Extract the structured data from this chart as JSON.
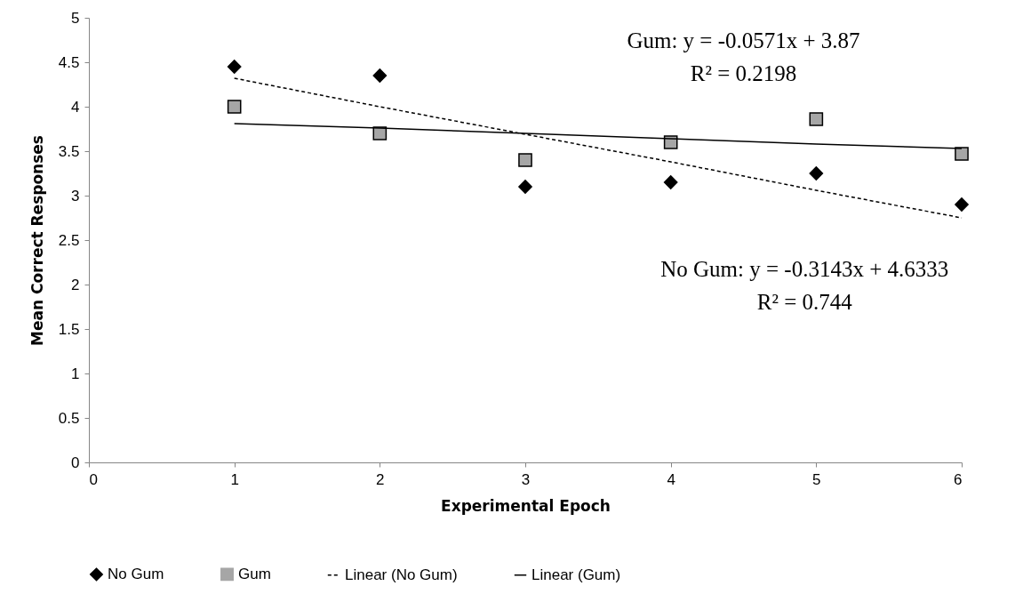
{
  "chart_data": {
    "type": "scatter",
    "xlabel": "Experimental Epoch",
    "ylabel": "Mean Correct Responses",
    "x": [
      1,
      2,
      3,
      4,
      5,
      6
    ],
    "xlim": [
      0,
      6
    ],
    "xticks": [
      0,
      1,
      2,
      3,
      4,
      5,
      6
    ],
    "ylim": [
      0,
      5
    ],
    "yticks": [
      0,
      0.5,
      1,
      1.5,
      2,
      2.5,
      3,
      3.5,
      4,
      4.5,
      5
    ],
    "series": [
      {
        "name": "No Gum",
        "marker": "diamond",
        "color": "#000000",
        "values": [
          4.45,
          4.35,
          3.1,
          3.15,
          3.25,
          2.9
        ]
      },
      {
        "name": "Gum",
        "marker": "square",
        "color": "#a6a6a6",
        "values": [
          4.0,
          3.7,
          3.4,
          3.6,
          3.86,
          3.47
        ]
      },
      {
        "name": "Linear (No Gum)",
        "type": "line",
        "line_style": "dashed",
        "color": "#000000",
        "values": [
          4.32,
          4.0,
          3.69,
          3.38,
          3.06,
          2.75
        ]
      },
      {
        "name": "Linear (Gum)",
        "type": "line",
        "line_style": "solid",
        "color": "#000000",
        "values": [
          3.81,
          3.76,
          3.7,
          3.64,
          3.58,
          3.53
        ]
      }
    ],
    "annotations": [
      "Gum: y = -0.0571x + 3.87",
      "R² = 0.2198",
      "No Gum: y = -0.3143x + 4.6333",
      "R² = 0.744"
    ],
    "grid": false,
    "legend": "bottom"
  }
}
